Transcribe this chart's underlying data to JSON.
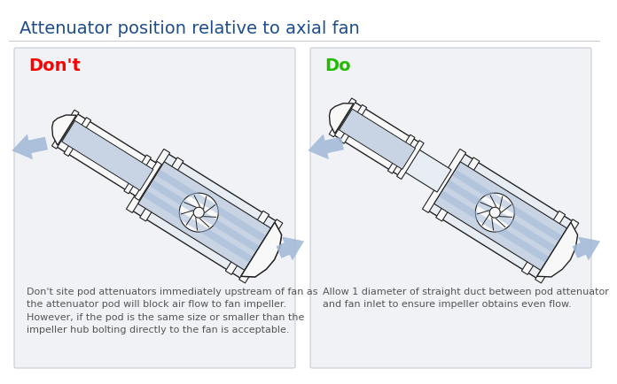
{
  "title": "Attenuator position relative to axial fan",
  "title_color": "#1f4e8c",
  "title_fontsize": 14,
  "bg_color": "#ffffff",
  "panel_bg": "#f0f2f5",
  "panel_border": "#c8ccd0",
  "left_label": "Don't",
  "left_label_color": "#ff0000",
  "right_label": "Do",
  "right_label_color": "#22bb00",
  "left_caption": "Don't site pod attenuators immediately upstream of fan as\nthe attenuator pod will block air flow to fan impeller.\nHowever, if the pod is the same size or smaller than the\nimpeller hub bolting directly to the fan is acceptable.",
  "right_caption": "Allow 1 diameter of straight duct between pod attenuator\nand fan inlet to ensure impeller obtains even flow.",
  "caption_color": "#555555",
  "caption_fontsize": 8.0,
  "label_fontsize": 14,
  "arrow_color": "#a0b8d8",
  "outline_color": "#222222",
  "body_fill": "#e8edf3",
  "inner_fill": "#c8d4e3",
  "white_fill": "#f8f8f8",
  "tilt_deg": -32
}
